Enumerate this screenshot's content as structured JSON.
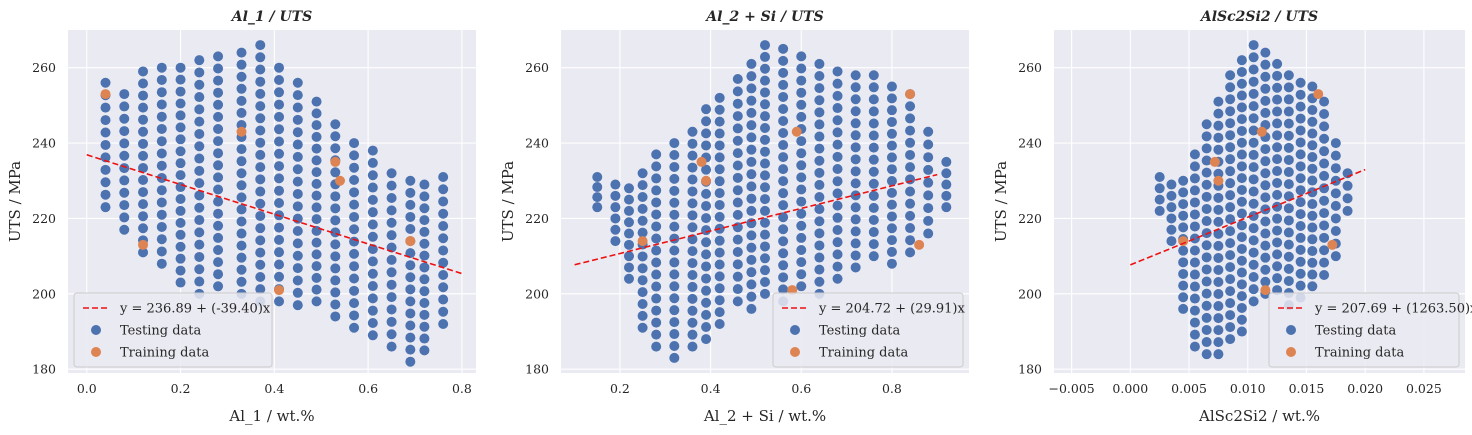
{
  "figure": {
    "background": "#ffffff",
    "plot_background": "#eaeaf2",
    "test_color": "#4c72b0",
    "train_color": "#dd8452",
    "fit_color": "#ee1111"
  },
  "chart_data": [
    {
      "type": "scatter",
      "title": "Al_1 / UTS",
      "xlabel": "Al_1 / wt.%",
      "ylabel": "UTS / MPa",
      "xlim": [
        -0.04,
        0.83
      ],
      "ylim": [
        179,
        270
      ],
      "xticks": [
        0.0,
        0.2,
        0.4,
        0.6,
        0.8
      ],
      "xtick_labels": [
        "0.0",
        "0.2",
        "0.4",
        "0.6",
        "0.8"
      ],
      "yticks": [
        180,
        200,
        220,
        240,
        260
      ],
      "ytick_labels": [
        "180",
        "200",
        "220",
        "240",
        "260"
      ],
      "grid": true,
      "legend": "lower-left",
      "fit": {
        "label": "y = 236.89 + (-39.40)x",
        "intercept": 236.89,
        "slope": -39.4,
        "x_range": [
          0.0,
          0.8
        ]
      },
      "series": [
        {
          "name": "Testing data",
          "x_levels": [
            0.04,
            0.08,
            0.12,
            0.16,
            0.2,
            0.24,
            0.28,
            0.33,
            0.37,
            0.41,
            0.45,
            0.49,
            0.53,
            0.57,
            0.61,
            0.65,
            0.69,
            0.72,
            0.76
          ],
          "y_top": [
            256,
            253,
            259,
            260,
            260,
            262,
            263,
            264,
            266,
            260,
            256,
            251,
            245,
            240,
            238,
            232,
            230,
            229,
            231
          ],
          "y_bottom": [
            223,
            217,
            211,
            208,
            203,
            200,
            202,
            200,
            198,
            198,
            197,
            198,
            194,
            191,
            189,
            186,
            182,
            185,
            192
          ]
        },
        {
          "name": "Training data",
          "x": [
            0.04,
            0.12,
            0.33,
            0.41,
            0.53,
            0.54,
            0.69
          ],
          "y": [
            253,
            213,
            243,
            201,
            235,
            230,
            214
          ]
        }
      ]
    },
    {
      "type": "scatter",
      "title": "Al_2 + Si / UTS",
      "xlabel": "Al_2 + Si / wt.%",
      "ylabel": "UTS / MPa",
      "xlim": [
        0.07,
        0.97
      ],
      "ylim": [
        179,
        270
      ],
      "xticks": [
        0.2,
        0.4,
        0.6,
        0.8
      ],
      "xtick_labels": [
        "0.2",
        "0.4",
        "0.6",
        "0.8"
      ],
      "yticks": [
        180,
        200,
        220,
        240,
        260
      ],
      "ytick_labels": [
        "180",
        "200",
        "220",
        "240",
        "260"
      ],
      "grid": true,
      "legend": "lower-right",
      "fit": {
        "label": "y = 204.72 + (29.91)x",
        "intercept": 204.72,
        "slope": 29.91,
        "x_range": [
          0.1,
          0.9
        ]
      },
      "series": [
        {
          "name": "Testing data",
          "x_levels": [
            0.15,
            0.19,
            0.22,
            0.25,
            0.28,
            0.32,
            0.36,
            0.39,
            0.42,
            0.46,
            0.49,
            0.52,
            0.56,
            0.6,
            0.64,
            0.68,
            0.72,
            0.76,
            0.8,
            0.84,
            0.88,
            0.92
          ],
          "y_top": [
            231,
            229,
            228,
            232,
            237,
            240,
            243,
            249,
            252,
            257,
            261,
            266,
            265,
            263,
            261,
            259,
            258,
            258,
            255,
            253,
            243,
            235
          ],
          "y_bottom": [
            223,
            214,
            204,
            191,
            186,
            183,
            186,
            188,
            192,
            198,
            196,
            200,
            198,
            202,
            200,
            204,
            207,
            210,
            208,
            211,
            216,
            223
          ]
        },
        {
          "name": "Training data",
          "x": [
            0.25,
            0.38,
            0.39,
            0.58,
            0.59,
            0.84,
            0.86
          ],
          "y": [
            214,
            235,
            230,
            201,
            243,
            253,
            213
          ]
        }
      ]
    },
    {
      "type": "scatter",
      "title": "AlSc2Si2 / UTS",
      "xlabel": "AlSc2Si2 / wt.%",
      "ylabel": "UTS / MPa",
      "xlim": [
        -0.0065,
        0.0285
      ],
      "ylim": [
        179,
        270
      ],
      "xticks": [
        -0.005,
        0.0,
        0.005,
        0.01,
        0.015,
        0.02,
        0.025
      ],
      "xtick_labels": [
        "−0.005",
        "0.000",
        "0.005",
        "0.010",
        "0.015",
        "0.020",
        "0.025"
      ],
      "yticks": [
        180,
        200,
        220,
        240,
        260
      ],
      "ytick_labels": [
        "180",
        "200",
        "220",
        "240",
        "260"
      ],
      "grid": true,
      "legend": "lower-right",
      "fit": {
        "label": "y = 207.69 + (1263.50)x",
        "intercept": 207.69,
        "slope": 1263.5,
        "x_range": [
          0.0,
          0.02
        ]
      },
      "series": [
        {
          "name": "Testing data",
          "x_levels": [
            0.0025,
            0.0035,
            0.0045,
            0.0055,
            0.0065,
            0.0075,
            0.0085,
            0.0095,
            0.0105,
            0.0115,
            0.0125,
            0.0135,
            0.0145,
            0.0155,
            0.0165,
            0.0175,
            0.0185
          ],
          "y_top": [
            231,
            229,
            230,
            237,
            245,
            251,
            258,
            262,
            266,
            264,
            261,
            258,
            256,
            255,
            251,
            240,
            232
          ],
          "y_bottom": [
            222,
            214,
            196,
            186,
            184,
            184,
            188,
            190,
            198,
            200,
            201,
            197,
            199,
            202,
            205,
            210,
            222
          ]
        },
        {
          "name": "Training data",
          "x": [
            0.0045,
            0.0072,
            0.0075,
            0.0112,
            0.0115,
            0.016,
            0.0172
          ],
          "y": [
            214,
            235,
            230,
            243,
            201,
            253,
            213
          ]
        }
      ]
    }
  ]
}
